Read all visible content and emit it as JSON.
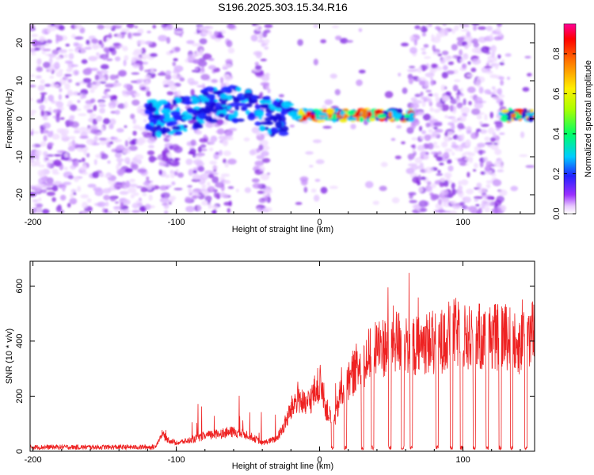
{
  "title": "S196.2025.303.15.34.R16",
  "chart_data": [
    {
      "type": "heatmap",
      "title": "S196.2025.303.15.34.R16",
      "xlabel": "Height of straight line (km)",
      "ylabel": "Frequency (Hz)",
      "xlim": [
        -202,
        150
      ],
      "ylim": [
        -25,
        25
      ],
      "xticks": [
        -200,
        -100,
        0,
        100
      ],
      "xtick_labels": [
        "-200",
        "-100",
        "0",
        "100"
      ],
      "yticks": [
        -20,
        -10,
        0,
        10,
        20
      ],
      "ytick_labels": [
        "-20",
        "-10",
        "0",
        "10",
        "20"
      ],
      "colorbar": {
        "label": "Normalized spectral amplitude",
        "range": [
          0,
          0.95
        ],
        "ticks": [
          0.0,
          0.2,
          0.4,
          0.6,
          0.8
        ],
        "tick_labels": [
          "0.0",
          "0.2",
          "0.4",
          "0.6",
          "0.8"
        ],
        "colormap": [
          "#ffffff",
          "#e0b8f8",
          "#8a2be2",
          "#2020ff",
          "#00c8ff",
          "#00ff80",
          "#ffff00",
          "#ff8000",
          "#ff0000",
          "#ff0080"
        ]
      },
      "noise_regions_km": [
        [
          -202,
          -115
        ],
        [
          -110,
          -98
        ],
        [
          -92,
          -60
        ],
        [
          -45,
          -35
        ],
        [
          63,
          128
        ]
      ],
      "signal_band_km": [
        -120,
        150
      ],
      "signal_band_hz": [
        -3,
        5
      ]
    },
    {
      "type": "line",
      "xlabel": "Height of straight line (km)",
      "ylabel": "SNR (10 * v/v)",
      "xlim": [
        -202,
        150
      ],
      "ylim": [
        0,
        690
      ],
      "xticks": [
        -200,
        -100,
        0,
        100
      ],
      "xtick_labels": [
        "-200",
        "-100",
        "0",
        "100"
      ],
      "yticks": [
        0,
        200,
        400,
        600
      ],
      "ytick_labels": [
        "0",
        "200",
        "400",
        "600"
      ],
      "color": "#ee2222",
      "series": [
        {
          "name": "SNR",
          "x": [
            -202,
            -190,
            -170,
            -150,
            -130,
            -115,
            -110,
            -105,
            -100,
            -90,
            -80,
            -70,
            -60,
            -50,
            -40,
            -30,
            -25,
            -20,
            -15,
            -10,
            -5,
            0,
            5,
            10,
            15,
            20,
            25,
            30,
            35,
            40,
            45,
            50,
            55,
            60,
            65,
            70,
            75,
            80,
            85,
            90,
            95,
            100,
            105,
            110,
            115,
            120,
            125,
            130,
            135,
            140,
            145,
            150
          ],
          "y": [
            15,
            15,
            15,
            15,
            15,
            15,
            60,
            40,
            30,
            40,
            55,
            65,
            70,
            60,
            30,
            45,
            90,
            150,
            200,
            160,
            200,
            250,
            150,
            100,
            220,
            250,
            300,
            320,
            350,
            380,
            380,
            400,
            400,
            400,
            380,
            380,
            400,
            390,
            400,
            420,
            430,
            420,
            410,
            420,
            400,
            420,
            410,
            420,
            400,
            390,
            420,
            430
          ]
        }
      ],
      "dropouts_km": [
        9,
        18,
        30,
        37,
        49,
        58,
        64,
        82,
        92,
        99,
        108,
        117,
        126,
        134,
        144
      ]
    }
  ]
}
